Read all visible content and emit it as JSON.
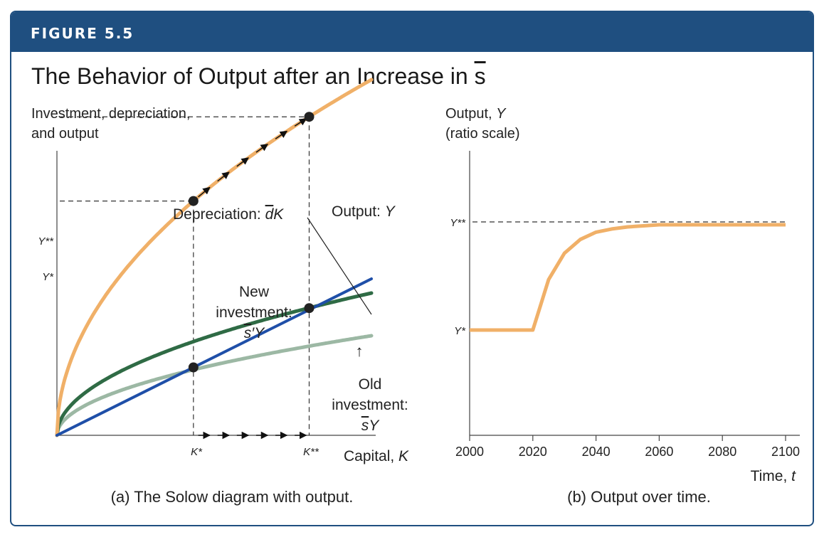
{
  "figure": {
    "label": "FIGURE 5.5",
    "title_main": "The Behavior of Output after an Increase in ",
    "title_symbol": "s"
  },
  "colors": {
    "frame": "#1f4f80",
    "output": "#f0b068",
    "new_investment": "#2f6b45",
    "old_investment": "#9cb8a4",
    "depreciation": "#1f4fa8",
    "dots": "#222222"
  },
  "chart_data": [
    {
      "type": "line",
      "caption": "(a) The Solow diagram with output.",
      "ylabel_line1": "Investment, depreciation,",
      "ylabel_line2": "and output",
      "xlabel_main": "Capital, ",
      "xlabel_var": "K",
      "y_ticks": [
        "Y**",
        "Y*"
      ],
      "x_ticks": [
        "K*",
        "K**"
      ],
      "labels": {
        "depreciation_main": "Depreciation: ",
        "depreciation_d": "d",
        "depreciation_k": "K",
        "output_main": "Output: ",
        "output_var": "Y",
        "new_line1": "New",
        "new_line2": "investment:",
        "new_s": "s",
        "new_rest": "′Y",
        "old_line1": "Old",
        "old_line2": "investment:",
        "old_s": "s",
        "old_rest": "Y",
        "shift_arrow": "↑"
      },
      "series": [
        {
          "key": "output",
          "x": [
            0,
            10,
            20,
            30,
            40,
            50,
            60,
            70,
            80,
            90,
            100
          ],
          "y": [
            0,
            158,
            223,
            274,
            316,
            354,
            387,
            418,
            447,
            474,
            500
          ]
        },
        {
          "key": "new_investment",
          "x": [
            0,
            10,
            20,
            30,
            40,
            50,
            60,
            70,
            80,
            90,
            100
          ],
          "y": [
            0,
            63,
            89,
            110,
            126,
            142,
            155,
            167,
            179,
            190,
            200
          ]
        },
        {
          "key": "old_investment",
          "x": [
            0,
            10,
            20,
            30,
            40,
            50,
            60,
            70,
            80,
            90,
            100
          ],
          "y": [
            0,
            44,
            63,
            77,
            89,
            99,
            108,
            117,
            125,
            133,
            140
          ]
        },
        {
          "key": "depreciation",
          "x": [
            0,
            100
          ],
          "y": [
            0,
            220
          ]
        }
      ],
      "steady_states": [
        {
          "x": 43.4,
          "y": 95.5
        },
        {
          "x": 80.2,
          "y": 178.8
        }
      ],
      "ranges": {
        "x": [
          0,
          100
        ],
        "y": [
          0,
          600
        ]
      }
    },
    {
      "type": "line",
      "caption": "(b) Output over time.",
      "ylabel_line1": "Output, ",
      "ylabel_var": "Y",
      "ylabel_line2": "(ratio scale)",
      "xlabel_main": "Time, ",
      "xlabel_var": "t",
      "y_ticks": [
        "Y**",
        "Y*"
      ],
      "x_ticks": [
        "2000",
        "2020",
        "2040",
        "2060",
        "2080",
        "2100"
      ],
      "series": [
        {
          "key": "output_path",
          "x": [
            2000,
            2020,
            2025,
            2030,
            2035,
            2040,
            2045,
            2050,
            2055,
            2060,
            2070,
            2080,
            2100
          ],
          "y": [
            0,
            0,
            0.48,
            0.73,
            0.86,
            0.93,
            0.96,
            0.98,
            0.99,
            1,
            1,
            1,
            1
          ]
        }
      ],
      "y_scale_note": "0 = Y*, 1 = Y**",
      "ranges": {
        "x": [
          2000,
          2100
        ],
        "y": [
          -0.5,
          1.3
        ]
      }
    }
  ]
}
